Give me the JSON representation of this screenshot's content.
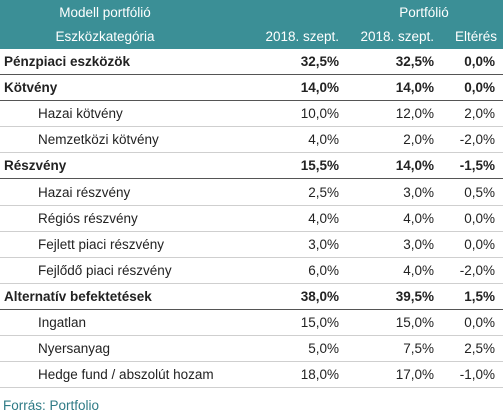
{
  "header": {
    "row1": {
      "model_label": "Modell portfólió",
      "portfolio_label": "Portfólió"
    },
    "row2": {
      "category_label": "Eszközkategória",
      "col1": "2018. szept.",
      "col2": "2018. szept.",
      "col3": "Eltérés"
    }
  },
  "rows": [
    {
      "type": "cat",
      "name": "Pénzpiaci eszközök",
      "model": "32,5%",
      "portfolio": "32,5%",
      "diff": "0,0%"
    },
    {
      "type": "cat",
      "name": "Kötvény",
      "model": "14,0%",
      "portfolio": "14,0%",
      "diff": "0,0%"
    },
    {
      "type": "sub",
      "name": "Hazai kötvény",
      "model": "10,0%",
      "portfolio": "12,0%",
      "diff": "2,0%"
    },
    {
      "type": "sub",
      "name": "Nemzetközi kötvény",
      "model": "4,0%",
      "portfolio": "2,0%",
      "diff": "-2,0%"
    },
    {
      "type": "cat",
      "name": "Részvény",
      "model": "15,5%",
      "portfolio": "14,0%",
      "diff": "-1,5%"
    },
    {
      "type": "sub",
      "name": "Hazai részvény",
      "model": "2,5%",
      "portfolio": "3,0%",
      "diff": "0,5%"
    },
    {
      "type": "sub",
      "name": "Régiós részvény",
      "model": "4,0%",
      "portfolio": "4,0%",
      "diff": "0,0%"
    },
    {
      "type": "sub",
      "name": "Fejlett piaci részvény",
      "model": "3,0%",
      "portfolio": "3,0%",
      "diff": "0,0%"
    },
    {
      "type": "sub",
      "name": "Fejlődő piaci részvény",
      "model": "6,0%",
      "portfolio": "4,0%",
      "diff": "-2,0%"
    },
    {
      "type": "cat",
      "name": "Alternatív befektetések",
      "model": "38,0%",
      "portfolio": "39,5%",
      "diff": "1,5%"
    },
    {
      "type": "sub",
      "name": "Ingatlan",
      "model": "15,0%",
      "portfolio": "15,0%",
      "diff": "0,0%"
    },
    {
      "type": "sub",
      "name": "Nyersanyag",
      "model": "5,0%",
      "portfolio": "7,5%",
      "diff": "2,5%"
    },
    {
      "type": "sub",
      "name": "Hedge fund / abszolút hozam",
      "model": "18,0%",
      "portfolio": "17,0%",
      "diff": "-1,0%"
    }
  ],
  "source": "Forrás: Portfolio",
  "colors": {
    "header_bg": "#3b8f96",
    "source_text": "#2f7b86"
  }
}
